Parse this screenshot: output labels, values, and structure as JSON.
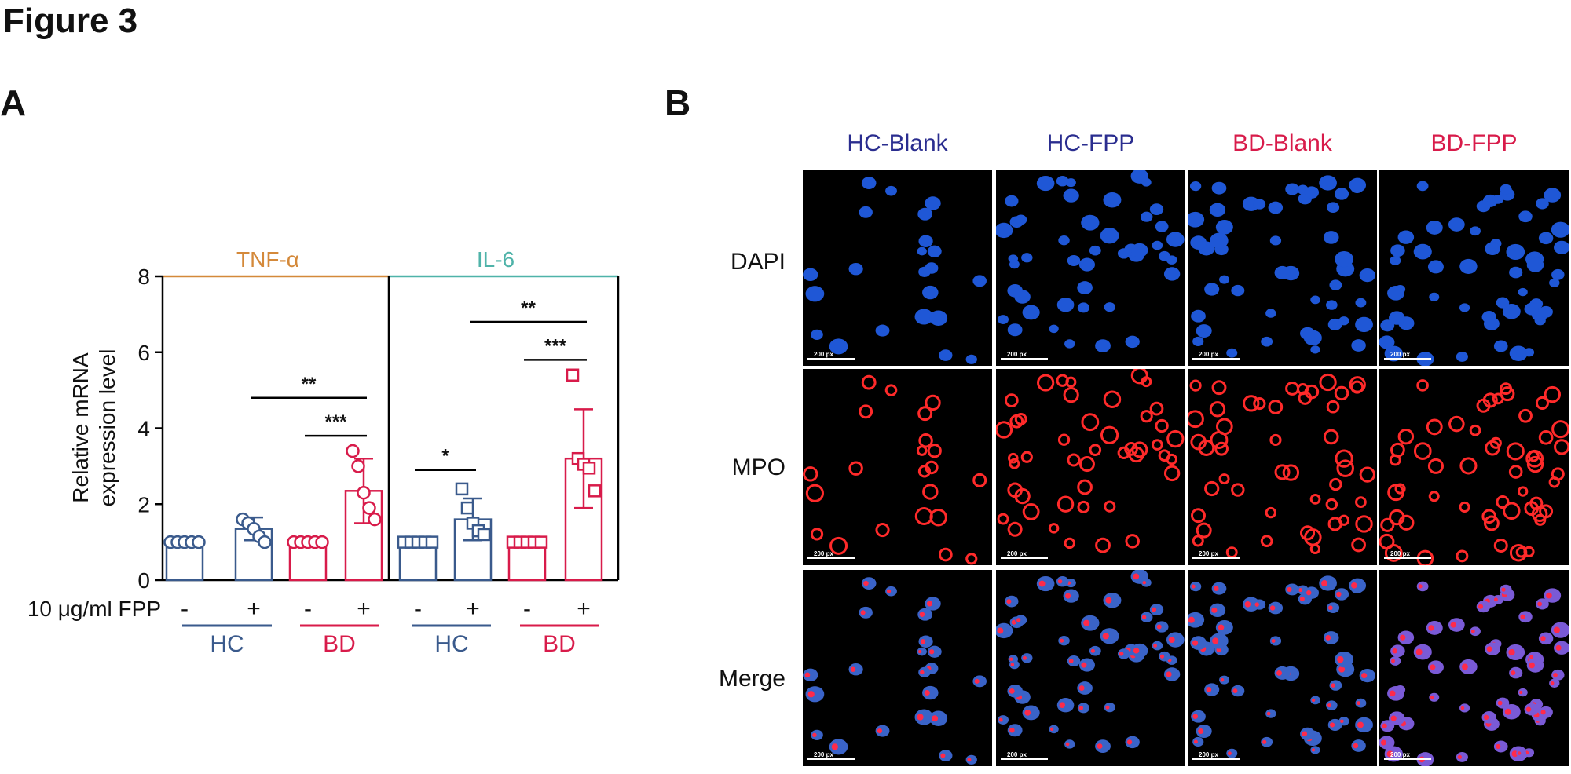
{
  "figure_title": "Figure 3",
  "panel_a_letter": "A",
  "panel_b_letter": "B",
  "chart_data": {
    "type": "bar",
    "ylabel_line1": "Relative mRNA",
    "ylabel_line2": "expression level",
    "ylim": [
      0,
      8
    ],
    "yticks": [
      "0",
      "2",
      "4",
      "6",
      "8"
    ],
    "treatment_label": "10 μg/ml FPP",
    "treatment_signs": [
      "-",
      "+",
      "-",
      "+",
      "-",
      "+",
      "-",
      "+"
    ],
    "group_labels": [
      "HC",
      "BD",
      "HC",
      "BD"
    ],
    "facets": [
      {
        "label": "TNF-α",
        "color": "#d4893a"
      },
      {
        "label": "IL-6",
        "color": "#4fb3a9"
      }
    ],
    "bars": [
      {
        "facet": 0,
        "group": "HC",
        "fpp": "-",
        "value": 1.0,
        "sd": 0.0,
        "color": "#3a5a8c",
        "marker": "circle",
        "points": [
          1.0,
          1.0,
          1.0,
          1.0,
          1.0
        ]
      },
      {
        "facet": 0,
        "group": "HC",
        "fpp": "+",
        "value": 1.35,
        "sd": 0.3,
        "color": "#3a5a8c",
        "marker": "circle",
        "points": [
          1.6,
          1.5,
          1.35,
          1.15,
          1.0
        ]
      },
      {
        "facet": 0,
        "group": "BD",
        "fpp": "-",
        "value": 1.0,
        "sd": 0.0,
        "color": "#d81b4a",
        "marker": "circle",
        "points": [
          1.0,
          1.0,
          1.0,
          1.0,
          1.0
        ]
      },
      {
        "facet": 0,
        "group": "BD",
        "fpp": "+",
        "value": 2.35,
        "sd": 0.85,
        "color": "#d81b4a",
        "marker": "circle",
        "points": [
          3.4,
          3.0,
          2.3,
          1.9,
          1.6
        ]
      },
      {
        "facet": 1,
        "group": "HC",
        "fpp": "-",
        "value": 1.0,
        "sd": 0.0,
        "color": "#3a5a8c",
        "marker": "square",
        "points": [
          1.0,
          1.0,
          1.0,
          1.0,
          1.0
        ]
      },
      {
        "facet": 1,
        "group": "HC",
        "fpp": "+",
        "value": 1.6,
        "sd": 0.55,
        "color": "#3a5a8c",
        "marker": "square",
        "points": [
          2.4,
          1.9,
          1.5,
          1.3,
          1.2
        ]
      },
      {
        "facet": 1,
        "group": "BD",
        "fpp": "-",
        "value": 1.0,
        "sd": 0.0,
        "color": "#d81b4a",
        "marker": "square",
        "points": [
          1.0,
          1.0,
          1.0,
          1.0,
          1.0
        ]
      },
      {
        "facet": 1,
        "group": "BD",
        "fpp": "+",
        "value": 3.2,
        "sd": 1.3,
        "color": "#d81b4a",
        "marker": "square",
        "points": [
          5.4,
          3.2,
          3.05,
          2.95,
          2.35
        ]
      }
    ],
    "significance": [
      {
        "from": 1,
        "to": 3,
        "level": 4.8,
        "label": "**"
      },
      {
        "from": 2,
        "to": 3,
        "level": 3.8,
        "label": "***"
      },
      {
        "from": 4,
        "to": 5,
        "level": 2.9,
        "label": "*"
      },
      {
        "from": 5,
        "to": 7,
        "level": 6.8,
        "label": "**"
      },
      {
        "from": 6,
        "to": 7,
        "level": 5.8,
        "label": "***"
      }
    ]
  },
  "panel_b": {
    "columns": [
      {
        "label": "HC-Blank",
        "color": "#2a2d8f"
      },
      {
        "label": "HC-FPP",
        "color": "#2a2d8f"
      },
      {
        "label": "BD-Blank",
        "color": "#d81b4a"
      },
      {
        "label": "BD-FPP",
        "color": "#d81b4a"
      }
    ],
    "rows": [
      "DAPI",
      "MPO",
      "Merge"
    ],
    "scale_bar_label": "200 px"
  }
}
